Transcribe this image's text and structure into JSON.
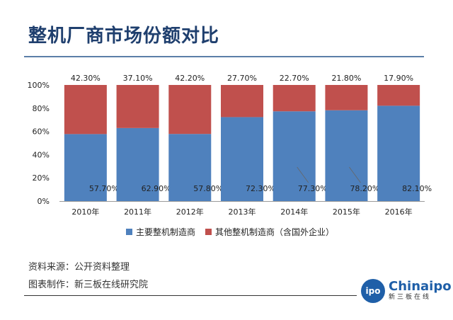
{
  "title": "整机厂商市场份额对比",
  "chart_data": {
    "type": "bar",
    "stacked": true,
    "categories": [
      "2010年",
      "2011年",
      "2012年",
      "2013年",
      "2014年",
      "2015年",
      "2016年"
    ],
    "series": [
      {
        "name": "主要整机制造商",
        "color": "#4f81bd",
        "values": [
          57.7,
          62.9,
          57.8,
          72.3,
          77.3,
          78.2,
          82.1
        ],
        "labels": [
          "57.70%",
          "62.90%",
          "57.80%",
          "72.30%",
          "77.30%",
          "78.20%",
          "82.10%"
        ]
      },
      {
        "name": "其他整机制造商（含国外企业）",
        "color": "#c0504d",
        "values": [
          42.3,
          37.1,
          42.2,
          27.7,
          22.7,
          21.8,
          17.9
        ],
        "labels": [
          "42.30%",
          "37.10%",
          "42.20%",
          "27.70%",
          "22.70%",
          "21.80%",
          "17.90%"
        ]
      }
    ],
    "yticks": [
      "0%",
      "20%",
      "40%",
      "60%",
      "80%",
      "100%"
    ],
    "ylim": [
      0,
      100
    ],
    "legend": "bottom"
  },
  "footer": {
    "source": "资料来源：公开资料整理",
    "maker": "图表制作：新三板在线研究院"
  },
  "logo": {
    "mark": "ipo",
    "name": "Chinaipo",
    "sub": "新三板在线"
  }
}
